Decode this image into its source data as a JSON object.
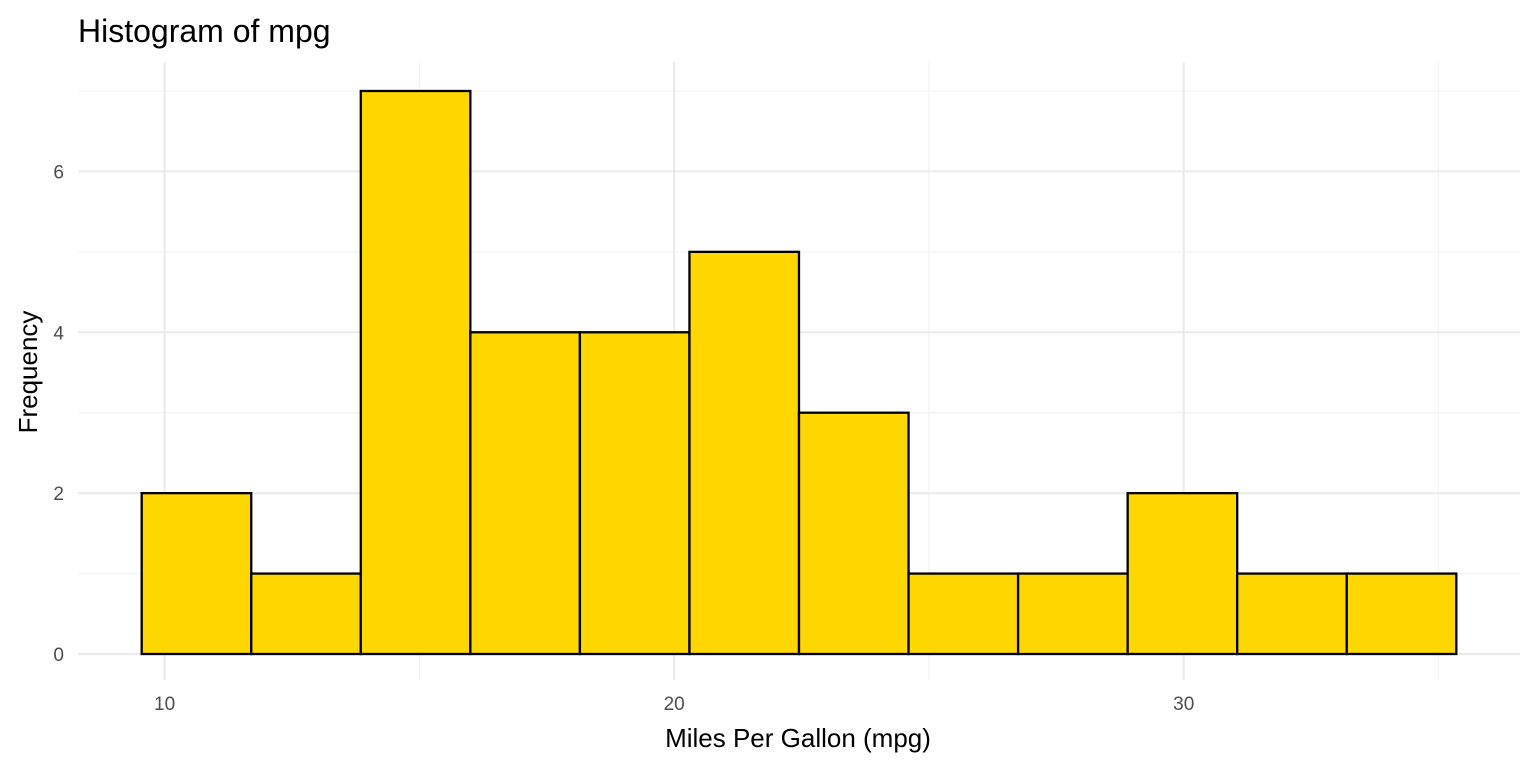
{
  "chart_data": {
    "type": "bar",
    "title": "Histogram of mpg",
    "xlabel": "Miles Per Gallon (mpg)",
    "ylabel": "Frequency",
    "bin_edges": [
      9.55,
      11.7,
      13.85,
      16.0,
      18.15,
      20.3,
      22.45,
      24.6,
      26.75,
      28.9,
      31.05,
      33.2,
      35.35
    ],
    "values": [
      2,
      1,
      7,
      4,
      4,
      5,
      3,
      1,
      1,
      2,
      1,
      1
    ],
    "xlim": [
      8.3,
      36.6
    ],
    "ylim": [
      0,
      7.35
    ],
    "x_ticks": [
      10,
      20,
      30
    ],
    "x_minor_ticks": [
      15,
      25,
      35
    ],
    "y_ticks": [
      0,
      2,
      4,
      6
    ],
    "y_minor_ticks": [
      1,
      3,
      5,
      7
    ],
    "grid": true,
    "colors": {
      "bar_fill": "#FFD700",
      "bar_stroke": "#000000",
      "grid_major": "#EBEBEB",
      "grid_minor": "#F3F3F3"
    }
  }
}
